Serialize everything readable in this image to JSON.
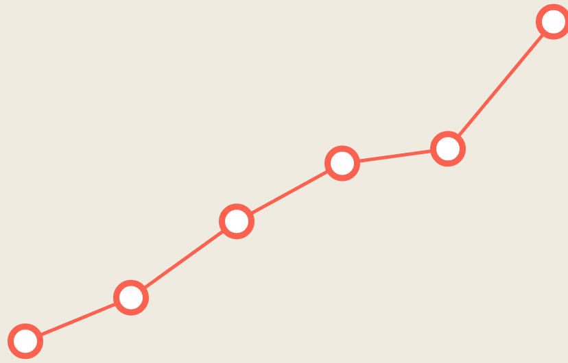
{
  "chart_data": {
    "type": "line",
    "categories": [
      null,
      null,
      null,
      null,
      null,
      null
    ],
    "series": [
      {
        "color": "#fd6150",
        "values": [
          6,
          18,
          39,
          55,
          59,
          94
        ]
      }
    ],
    "ylim": [
      0,
      100
    ],
    "background": "#efebe0"
  }
}
